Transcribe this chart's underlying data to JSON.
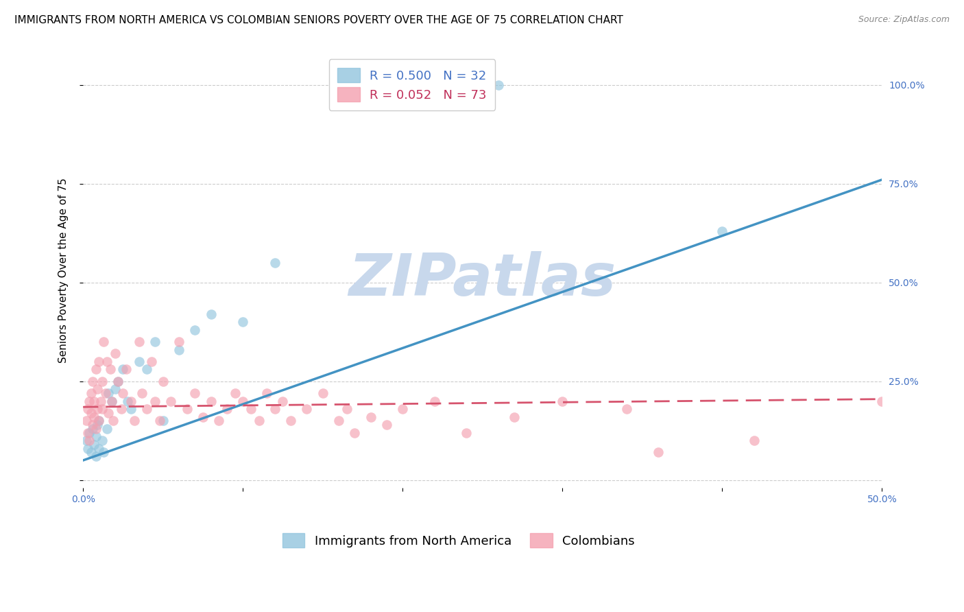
{
  "title": "IMMIGRANTS FROM NORTH AMERICA VS COLOMBIAN SENIORS POVERTY OVER THE AGE OF 75 CORRELATION CHART",
  "source": "Source: ZipAtlas.com",
  "ylabel": "Seniors Poverty Over the Age of 75",
  "xlim": [
    0.0,
    0.5
  ],
  "ylim": [
    -0.02,
    1.08
  ],
  "ytick_positions": [
    0.0,
    0.25,
    0.5,
    0.75,
    1.0
  ],
  "yticklabels": [
    "",
    "25.0%",
    "50.0%",
    "75.0%",
    "100.0%"
  ],
  "xtick_positions": [
    0.0,
    0.1,
    0.2,
    0.3,
    0.4,
    0.5
  ],
  "xticklabels": [
    "0.0%",
    "",
    "",
    "",
    "",
    "50.0%"
  ],
  "blue_R": 0.5,
  "blue_N": 32,
  "pink_R": 0.052,
  "pink_N": 73,
  "blue_color": "#92c5de",
  "pink_color": "#f4a0b0",
  "blue_line_color": "#4393c3",
  "pink_line_color": "#d6536d",
  "blue_line_x0": 0.0,
  "blue_line_y0": 0.05,
  "blue_line_x1": 0.5,
  "blue_line_y1": 0.76,
  "pink_line_x0": 0.0,
  "pink_line_y0": 0.185,
  "pink_line_x1": 0.5,
  "pink_line_y1": 0.205,
  "watermark_text": "ZIPatlas",
  "watermark_color": "#c8d8ec",
  "watermark_fontsize": 62,
  "background_color": "#ffffff",
  "grid_color": "#cccccc",
  "title_fontsize": 11,
  "axis_label_fontsize": 11,
  "tick_fontsize": 10,
  "legend_fontsize": 13,
  "blue_scatter_x": [
    0.002,
    0.003,
    0.004,
    0.005,
    0.006,
    0.007,
    0.008,
    0.008,
    0.009,
    0.01,
    0.01,
    0.012,
    0.013,
    0.015,
    0.016,
    0.018,
    0.02,
    0.022,
    0.025,
    0.028,
    0.03,
    0.035,
    0.04,
    0.045,
    0.05,
    0.06,
    0.07,
    0.08,
    0.1,
    0.12,
    0.26,
    0.4
  ],
  "blue_scatter_y": [
    0.1,
    0.08,
    0.12,
    0.07,
    0.13,
    0.09,
    0.11,
    0.06,
    0.14,
    0.08,
    0.15,
    0.1,
    0.07,
    0.13,
    0.22,
    0.2,
    0.23,
    0.25,
    0.28,
    0.2,
    0.18,
    0.3,
    0.28,
    0.35,
    0.15,
    0.33,
    0.38,
    0.42,
    0.4,
    0.55,
    1.0,
    0.63
  ],
  "pink_scatter_x": [
    0.002,
    0.003,
    0.003,
    0.004,
    0.004,
    0.005,
    0.005,
    0.006,
    0.006,
    0.007,
    0.007,
    0.008,
    0.008,
    0.009,
    0.009,
    0.01,
    0.01,
    0.011,
    0.012,
    0.012,
    0.013,
    0.014,
    0.015,
    0.016,
    0.017,
    0.018,
    0.019,
    0.02,
    0.022,
    0.024,
    0.025,
    0.027,
    0.03,
    0.032,
    0.035,
    0.037,
    0.04,
    0.043,
    0.045,
    0.048,
    0.05,
    0.055,
    0.06,
    0.065,
    0.07,
    0.075,
    0.08,
    0.085,
    0.09,
    0.095,
    0.1,
    0.105,
    0.11,
    0.115,
    0.12,
    0.125,
    0.13,
    0.14,
    0.15,
    0.16,
    0.165,
    0.17,
    0.18,
    0.19,
    0.2,
    0.22,
    0.24,
    0.27,
    0.3,
    0.34,
    0.36,
    0.5,
    0.42
  ],
  "pink_scatter_y": [
    0.15,
    0.18,
    0.12,
    0.2,
    0.1,
    0.17,
    0.22,
    0.14,
    0.25,
    0.16,
    0.2,
    0.13,
    0.28,
    0.18,
    0.23,
    0.15,
    0.3,
    0.2,
    0.25,
    0.18,
    0.35,
    0.22,
    0.3,
    0.17,
    0.28,
    0.2,
    0.15,
    0.32,
    0.25,
    0.18,
    0.22,
    0.28,
    0.2,
    0.15,
    0.35,
    0.22,
    0.18,
    0.3,
    0.2,
    0.15,
    0.25,
    0.2,
    0.35,
    0.18,
    0.22,
    0.16,
    0.2,
    0.15,
    0.18,
    0.22,
    0.2,
    0.18,
    0.15,
    0.22,
    0.18,
    0.2,
    0.15,
    0.18,
    0.22,
    0.15,
    0.18,
    0.12,
    0.16,
    0.14,
    0.18,
    0.2,
    0.12,
    0.16,
    0.2,
    0.18,
    0.07,
    0.2,
    0.1
  ]
}
